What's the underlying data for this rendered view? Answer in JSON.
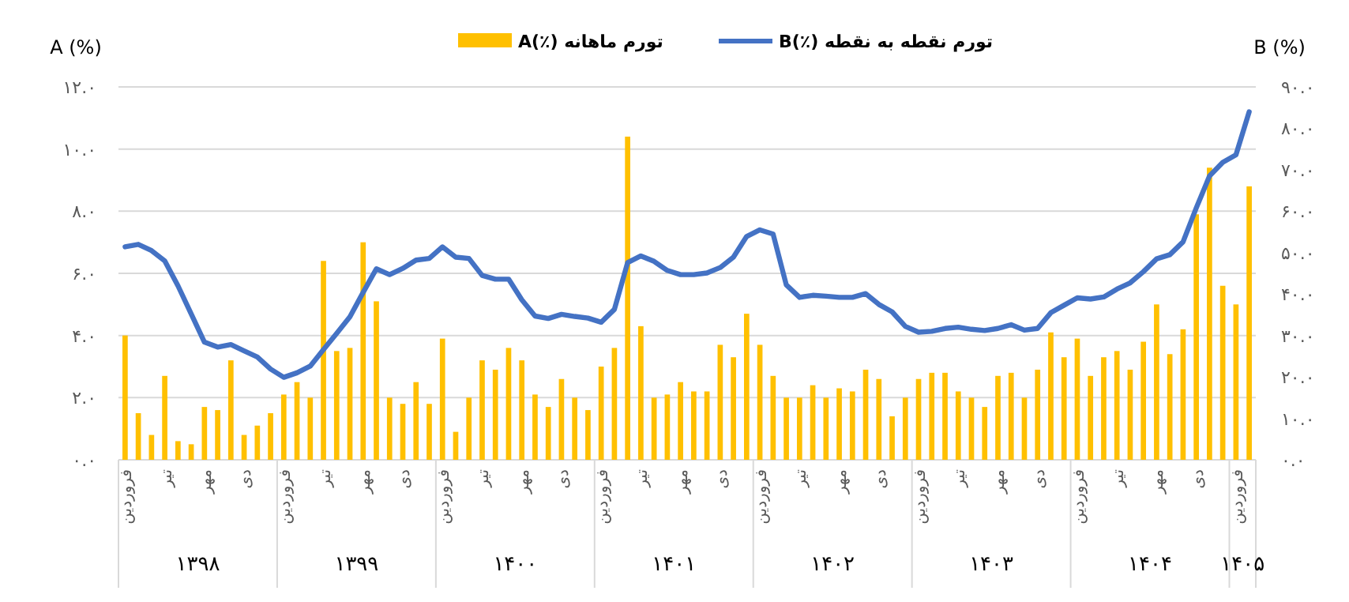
{
  "chart_data": {
    "type": "bar",
    "categories": [
      "فروردین",
      null,
      null,
      "تیر",
      null,
      null,
      "مهر",
      null,
      null,
      "دی",
      null,
      null,
      "فروردین",
      null,
      null,
      "تیر",
      null,
      null,
      "مهر",
      null,
      null,
      "دی",
      null,
      null,
      "فروردین",
      null,
      null,
      "تیر",
      null,
      null,
      "مهر",
      null,
      null,
      "دی",
      null,
      null,
      "فروردین",
      null,
      null,
      "تیر",
      null,
      null,
      "مهر",
      null,
      null,
      "دی",
      null,
      null,
      "فروردین",
      null,
      null,
      "تیر",
      null,
      null,
      "مهر",
      null,
      null,
      "دی",
      null,
      null,
      "فروردین",
      null,
      null,
      "تیر",
      null,
      null,
      "مهر",
      null,
      null,
      "دی",
      null,
      null,
      "فروردین",
      null,
      null,
      "تیر",
      null,
      null,
      "مهر",
      null,
      null,
      "دی",
      null,
      null,
      "فروردین",
      null
    ],
    "series": [
      {
        "name": "تورم ماهانه (٪)A",
        "color": "#ffc000",
        "values": [
          4.0,
          1.5,
          0.8,
          2.7,
          0.6,
          0.5,
          1.7,
          1.6,
          3.2,
          0.8,
          1.1,
          1.5,
          2.1,
          2.5,
          2.0,
          6.4,
          3.5,
          3.6,
          7.0,
          5.1,
          2.0,
          1.8,
          2.5,
          1.8,
          3.9,
          0.9,
          2.0,
          3.2,
          2.9,
          3.6,
          3.2,
          2.1,
          1.7,
          2.6,
          2.0,
          1.6,
          3.0,
          3.6,
          10.4,
          4.3,
          2.0,
          2.1,
          2.5,
          2.2,
          2.2,
          3.7,
          3.3,
          4.7,
          3.7,
          2.7,
          2.0,
          2.0,
          2.4,
          2.0,
          2.3,
          2.2,
          2.9,
          2.6,
          1.4,
          2.0,
          2.6,
          2.8,
          2.8,
          2.2,
          2.0,
          1.7,
          2.7,
          2.8,
          2.0,
          2.9,
          4.1,
          3.3,
          3.9,
          2.7,
          3.3,
          3.5,
          2.9,
          3.8,
          5.0,
          3.4,
          4.2,
          7.9,
          9.4,
          5.6,
          5.0,
          8.8
        ]
      },
      {
        "name": "تورم نقطه به نقطه (٪)B",
        "type": "line",
        "axis": "y2",
        "color": "#4472c4",
        "values": [
          51.4,
          52.0,
          50.5,
          48.0,
          42.0,
          35.2,
          28.4,
          27.2,
          27.8,
          26.3,
          24.8,
          21.9,
          19.9,
          21.0,
          22.6,
          26.6,
          30.5,
          34.5,
          40.4,
          46.1,
          44.7,
          46.2,
          48.2,
          48.6,
          51.4,
          48.9,
          48.6,
          44.5,
          43.6,
          43.6,
          38.6,
          34.7,
          34.1,
          35.1,
          34.6,
          34.2,
          33.2,
          36.3,
          47.6,
          49.2,
          47.9,
          45.7,
          44.7,
          44.7,
          45.1,
          46.4,
          48.9,
          53.9,
          55.5,
          54.5,
          42.2,
          39.2,
          39.7,
          39.5,
          39.2,
          39.2,
          40.1,
          37.5,
          35.7,
          32.2,
          30.8,
          31.0,
          31.7,
          32.0,
          31.5,
          31.2,
          31.7,
          32.6,
          31.3,
          31.7,
          35.5,
          37.3,
          39.1,
          38.8,
          39.3,
          41.2,
          42.7,
          45.4,
          48.5,
          49.5,
          52.6,
          60.8,
          68.5,
          71.8,
          73.6,
          84.0
        ]
      }
    ],
    "ylabel": "A (%)",
    "y2label": "B (%)",
    "ylim": [
      0,
      12
    ],
    "yticks": [
      {
        "value": 0,
        "label": "۰.۰"
      },
      {
        "value": 2,
        "label": "۲.۰"
      },
      {
        "value": 4,
        "label": "۴.۰"
      },
      {
        "value": 6,
        "label": "۶.۰"
      },
      {
        "value": 8,
        "label": "۸.۰"
      },
      {
        "value": 10,
        "label": "۱۰.۰"
      },
      {
        "value": 12,
        "label": "۱۲.۰"
      }
    ],
    "y2lim": [
      0,
      90
    ],
    "y2ticks": [
      {
        "value": 0,
        "label": "۰.۰"
      },
      {
        "value": 10,
        "label": "۱۰.۰"
      },
      {
        "value": 20,
        "label": "۲۰.۰"
      },
      {
        "value": 30,
        "label": "۳۰.۰"
      },
      {
        "value": 40,
        "label": "۴۰.۰"
      },
      {
        "value": 50,
        "label": "۵۰.۰"
      },
      {
        "value": 60,
        "label": "۶۰.۰"
      },
      {
        "value": 70,
        "label": "۷۰.۰"
      },
      {
        "value": 80,
        "label": "۸۰.۰"
      },
      {
        "value": 90,
        "label": "۹۰.۰"
      }
    ],
    "grid": "y",
    "legend": "top",
    "annotations": [
      "۱۳۹۸",
      "۱۳۹۹",
      "۱۴۰۰",
      "۱۴۰۱",
      "۱۴۰۲",
      "۱۴۰۳",
      "۱۴۰۴",
      "۱۴۰۵"
    ]
  }
}
